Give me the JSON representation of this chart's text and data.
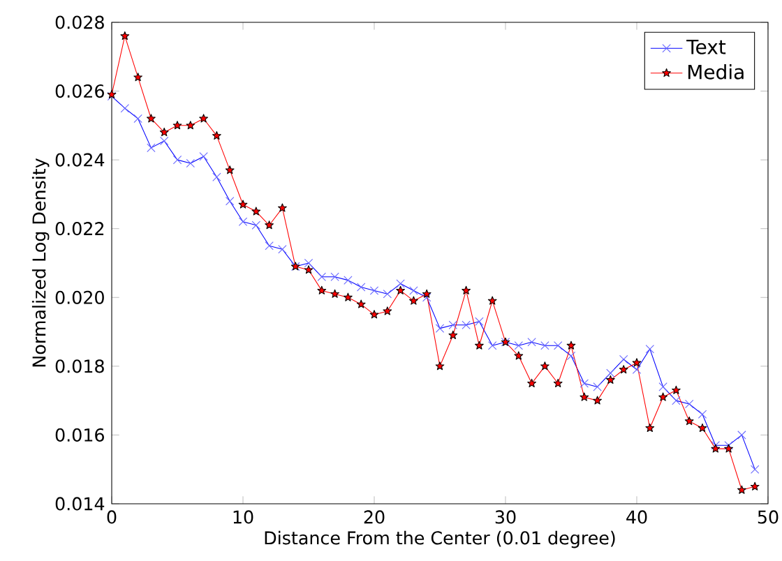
{
  "chart_data": {
    "type": "line",
    "xlabel": "Distance From the Center (0.01 degree)",
    "ylabel": "Normalized Log Density",
    "x": [
      0,
      1,
      2,
      3,
      4,
      5,
      6,
      7,
      8,
      9,
      10,
      11,
      12,
      13,
      14,
      15,
      16,
      17,
      18,
      19,
      20,
      21,
      22,
      23,
      24,
      25,
      26,
      27,
      28,
      29,
      30,
      31,
      32,
      33,
      34,
      35,
      36,
      37,
      38,
      39,
      40,
      41,
      42,
      43,
      44,
      45,
      46,
      47,
      48,
      49
    ],
    "series": [
      {
        "name": "Text",
        "color": "#0000ff",
        "marker": "cross",
        "values": [
          0.02585,
          0.0255,
          0.0252,
          0.02435,
          0.02455,
          0.024,
          0.0239,
          0.0241,
          0.0235,
          0.0228,
          0.0222,
          0.0221,
          0.0215,
          0.0214,
          0.0209,
          0.021,
          0.0206,
          0.0206,
          0.0205,
          0.0203,
          0.0202,
          0.0201,
          0.0204,
          0.0202,
          0.02,
          0.0191,
          0.0192,
          0.0192,
          0.0193,
          0.0186,
          0.0187,
          0.0186,
          0.0187,
          0.0186,
          0.0186,
          0.0183,
          0.0175,
          0.0174,
          0.0178,
          0.0182,
          0.0179,
          0.0185,
          0.0174,
          0.017,
          0.0169,
          0.0166,
          0.0157,
          0.0157,
          0.016,
          0.015
        ]
      },
      {
        "name": "Media",
        "color": "#ff0000",
        "marker": "star",
        "values": [
          0.0259,
          0.0276,
          0.0264,
          0.0252,
          0.0248,
          0.025,
          0.025,
          0.0252,
          0.0247,
          0.0237,
          0.0227,
          0.0225,
          0.0221,
          0.0226,
          0.0209,
          0.0208,
          0.0202,
          0.0201,
          0.02,
          0.0198,
          0.0195,
          0.0196,
          0.0202,
          0.0199,
          0.0201,
          0.018,
          0.0189,
          0.0202,
          0.0186,
          0.0199,
          0.0187,
          0.0183,
          0.0175,
          0.018,
          0.0175,
          0.0186,
          0.0171,
          0.017,
          0.0176,
          0.0179,
          0.0181,
          0.0162,
          0.0171,
          0.0173,
          0.0164,
          0.0162,
          0.0156,
          0.0156,
          0.0144,
          0.0145
        ]
      }
    ],
    "xlim": [
      0,
      50
    ],
    "ylim": [
      0.014,
      0.028
    ],
    "xticks": [
      0,
      10,
      20,
      30,
      40,
      50
    ],
    "yticks": [
      0.014,
      0.016,
      0.018,
      {
        "value": 0.02,
        "label": "0.020"
      },
      0.022,
      0.024,
      0.026,
      0.028
    ],
    "grid": false,
    "legend": "top right"
  }
}
